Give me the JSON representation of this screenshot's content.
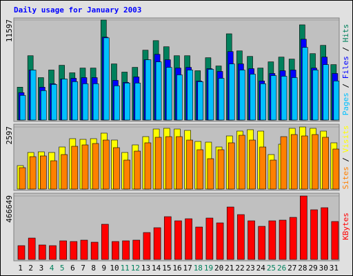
{
  "chart_data": [
    {
      "type": "bar",
      "title": "Daily usage for January 2003",
      "legend_separator": " / ",
      "ylim": [
        0,
        11597
      ],
      "yticks": [
        11597
      ],
      "series": [
        {
          "name": "Hits",
          "color": "#00805c",
          "values": [
            3810,
            7460,
            4920,
            5800,
            6350,
            5480,
            6030,
            6030,
            11597,
            6510,
            5560,
            6110,
            8100,
            9210,
            8500,
            7460,
            7460,
            5720,
            7230,
            6270,
            10000,
            8020,
            7380,
            6030,
            6750,
            7300,
            7070,
            11040,
            7700,
            8660,
            6430
          ]
        },
        {
          "name": "Files",
          "color": "#0000ff",
          "values": [
            3180,
            5800,
            3810,
            4210,
            4760,
            4840,
            4920,
            4920,
            9610,
            4600,
            4370,
            5000,
            6990,
            7620,
            6990,
            6030,
            6110,
            4530,
            5960,
            5640,
            7940,
            6510,
            5960,
            4530,
            5400,
            5720,
            5800,
            9370,
            6030,
            7300,
            5400
          ]
        },
        {
          "name": "Pages",
          "color": "#00c0ff",
          "values": [
            2860,
            5800,
            3410,
            4130,
            4760,
            4450,
            4210,
            4210,
            9530,
            3970,
            4290,
            4290,
            6990,
            6750,
            6110,
            5240,
            5800,
            4450,
            5880,
            4840,
            6510,
            5800,
            5320,
            4210,
            5160,
            5080,
            4920,
            8420,
            5800,
            6430,
            4530
          ]
        }
      ]
    },
    {
      "type": "bar",
      "legend_separator": " / ",
      "ylim": [
        0,
        2597
      ],
      "yticks": [
        2597
      ],
      "series": [
        {
          "name": "Visits",
          "color": "#ffff00",
          "values": [
            981,
            1530,
            1558,
            1530,
            1760,
            2107,
            2078,
            2107,
            2338,
            2049,
            1530,
            1847,
            2193,
            2511,
            2540,
            2511,
            2453,
            1991,
            1962,
            1760,
            2222,
            2424,
            2482,
            2424,
            1443,
            1876,
            2540,
            2597,
            2540,
            2424,
            1934
          ]
        },
        {
          "name": "Sites",
          "color": "#ff8000",
          "values": [
            895,
            1356,
            1385,
            1183,
            1443,
            1789,
            1847,
            1905,
            2049,
            1732,
            1212,
            1587,
            1934,
            2165,
            2193,
            2193,
            2049,
            1645,
            1270,
            1645,
            1934,
            2251,
            2049,
            1760,
            1212,
            2193,
            2280,
            2222,
            2280,
            2165,
            1674
          ]
        }
      ]
    },
    {
      "type": "bar",
      "ylim": [
        0,
        466649
      ],
      "yticks": [
        466649
      ],
      "categories": [
        "1",
        "2",
        "3",
        "4",
        "5",
        "6",
        "7",
        "8",
        "9",
        "10",
        "11",
        "12",
        "13",
        "14",
        "15",
        "16",
        "17",
        "18",
        "19",
        "20",
        "21",
        "22",
        "23",
        "24",
        "25",
        "26",
        "27",
        "28",
        "29",
        "30",
        "31"
      ],
      "label_colors": [
        "#000000",
        "#000000",
        "#000000",
        "#00805c",
        "#00805c",
        "#000000",
        "#000000",
        "#000000",
        "#000000",
        "#000000",
        "#00805c",
        "#00805c",
        "#000000",
        "#000000",
        "#000000",
        "#000000",
        "#000000",
        "#00805c",
        "#00805c",
        "#000000",
        "#000000",
        "#000000",
        "#000000",
        "#000000",
        "#00805c",
        "#00805c",
        "#000000",
        "#000000",
        "#000000",
        "#000000",
        "#000000"
      ],
      "series": [
        {
          "name": "KBytes",
          "color": "#ff0000",
          "values": [
            101440,
            157230,
            106510,
            101440,
            136940,
            131870,
            142020,
            126800,
            258670,
            131870,
            136940,
            142020,
            197810,
            233310,
            314460,
            284030,
            299250,
            238380,
            304320,
            268820,
            385470,
            329680,
            284030,
            243460,
            284030,
            289100,
            309390,
            466649,
            365180,
            380400,
            278960
          ]
        }
      ]
    }
  ]
}
